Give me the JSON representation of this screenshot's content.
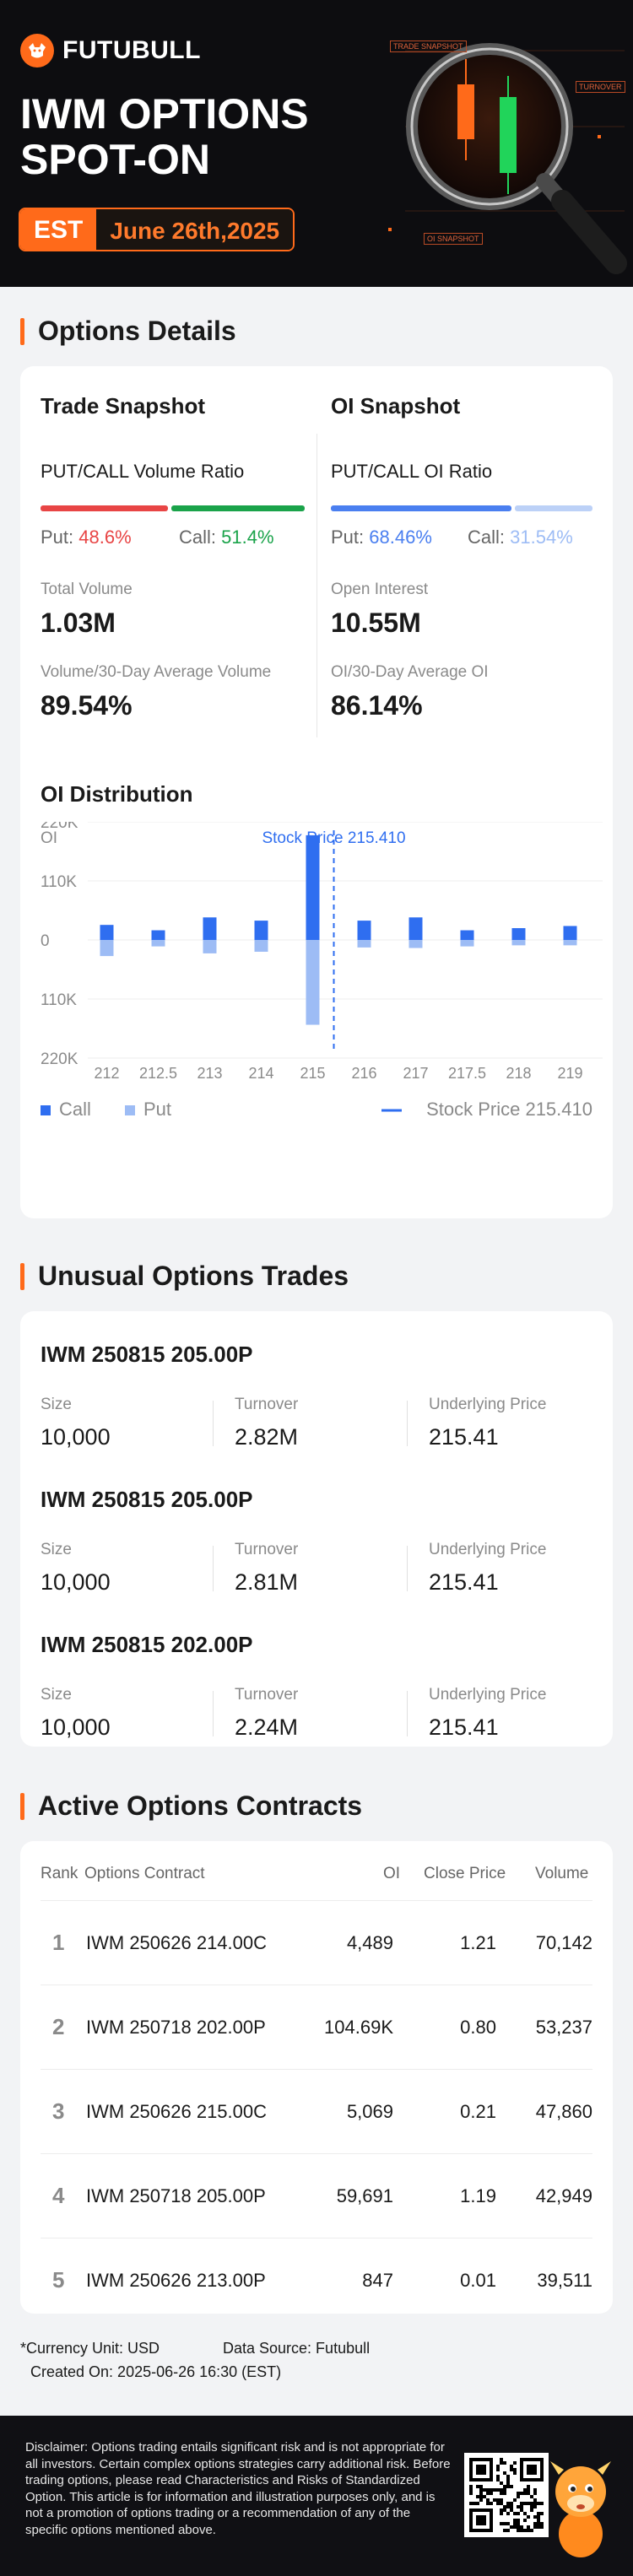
{
  "brand": {
    "name": "FUTUBULL",
    "accent": "#ff6a1a"
  },
  "hero": {
    "title_line1": "IWM OPTIONS",
    "title_line2": "SPOT-ON",
    "tz": "EST",
    "date": "June 26th,2025",
    "tags": [
      "TRADE SNAPSHOT",
      "TURNOVER",
      "OI SNAPSHOT"
    ]
  },
  "options_details": {
    "heading": "Options Details",
    "trade": {
      "title": "Trade Snapshot",
      "ratio_label": "PUT/CALL Volume Ratio",
      "put_label": "Put:",
      "put_value": "48.6%",
      "put_frac": 0.486,
      "call_label": "Call:",
      "call_value": "51.4%",
      "m1_label": "Total Volume",
      "m1_value": "1.03M",
      "m2_label": "Volume/30-Day Average Volume",
      "m2_value": "89.54%"
    },
    "oi": {
      "title": "OI Snapshot",
      "ratio_label": "PUT/CALL OI Ratio",
      "put_label": "Put:",
      "put_value": "68.46%",
      "put_frac": 0.6846,
      "call_label": "Call:",
      "call_value": "31.54%",
      "m1_label": "Open Interest",
      "m1_value": "10.55M",
      "m2_label": "OI/30-Day Average OI",
      "m2_value": "86.14%"
    },
    "colors": {
      "put_red": "#e84545",
      "call_green": "#1aa34a",
      "put_blue": "#4a7ff0",
      "call_lightblue": "#aac4f5"
    }
  },
  "oi_distribution": {
    "title": "OI Distribution",
    "legend_call": "Call",
    "legend_put": "Put",
    "legend_price": "Stock Price 215.410"
  },
  "chart_data": {
    "type": "bar",
    "title": "OI Distribution",
    "ylabel": "OI",
    "categories": [
      "212",
      "212.5",
      "213",
      "214",
      "215",
      "216",
      "217",
      "217.5",
      "218",
      "219"
    ],
    "y_ticks": [
      "220K",
      "110K",
      "0",
      "110K",
      "220K"
    ],
    "ylim": [
      -220000,
      220000
    ],
    "series": [
      {
        "name": "Call",
        "color": "#2f6ef0",
        "values": [
          28000,
          18000,
          42000,
          36000,
          195000,
          36000,
          42000,
          18000,
          22000,
          26000
        ]
      },
      {
        "name": "Put",
        "color": "#9dbcf5",
        "values": [
          -30000,
          -12000,
          -25000,
          -22000,
          -158000,
          -14000,
          -15000,
          -12000,
          -10000,
          -10000
        ]
      }
    ],
    "stock_price": {
      "label": "Stock Price 215.410",
      "value": 215.41
    },
    "legend": "bottom"
  },
  "unusual": {
    "heading": "Unusual Options Trades",
    "col_size": "Size",
    "col_turnover": "Turnover",
    "col_underlying": "Underlying Price",
    "trades": [
      {
        "contract": "IWM 250815 205.00P",
        "size": "10,000",
        "turnover": "2.82M",
        "underlying": "215.41"
      },
      {
        "contract": "IWM 250815 205.00P",
        "size": "10,000",
        "turnover": "2.81M",
        "underlying": "215.41"
      },
      {
        "contract": "IWM 250815 202.00P",
        "size": "10,000",
        "turnover": "2.24M",
        "underlying": "215.41"
      }
    ]
  },
  "active": {
    "heading": "Active Options Contracts",
    "headers": {
      "rank": "Rank",
      "contract": "Options Contract",
      "oi": "OI",
      "close": "Close Price",
      "volume": "Volume"
    },
    "rows": [
      {
        "rank": "1",
        "contract": "IWM 250626 214.00C",
        "oi": "4,489",
        "close": "1.21",
        "volume": "70,142"
      },
      {
        "rank": "2",
        "contract": "IWM 250718 202.00P",
        "oi": "104.69K",
        "close": "0.80",
        "volume": "53,237"
      },
      {
        "rank": "3",
        "contract": "IWM 250626 215.00C",
        "oi": "5,069",
        "close": "0.21",
        "volume": "47,860"
      },
      {
        "rank": "4",
        "contract": "IWM 250718 205.00P",
        "oi": "59,691",
        "close": "1.19",
        "volume": "42,949"
      },
      {
        "rank": "5",
        "contract": "IWM 250626 213.00P",
        "oi": "847",
        "close": "0.01",
        "volume": "39,511"
      }
    ]
  },
  "footer": {
    "currency": "Currency Unit: USD",
    "source": "Data Source: Futubull",
    "created": "Created On: 2025-06-26 16:30 (EST)",
    "disclaimer": "Disclaimer: Options trading entails significant risk and is not appropriate for all investors. Certain complex options strategies carry additional risk. Before trading options, please read Characteristics and Risks of Standardized Option. This article is for information and illustration purposes only, and is not a promotion of options trading or a recommendation of any of the specific options mentioned above."
  }
}
